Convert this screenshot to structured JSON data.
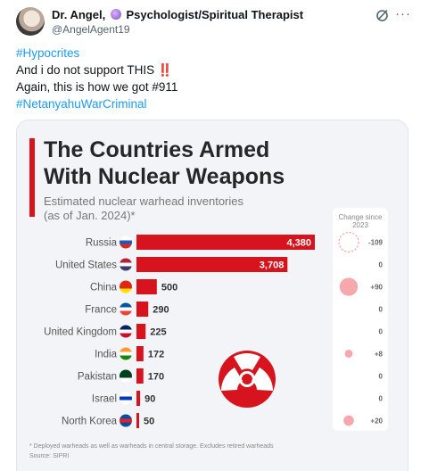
{
  "author": {
    "name": "Dr. Angel,",
    "title": "Psychologist/Spiritual Therapist",
    "handle": "@AngelAgent19"
  },
  "tweet": {
    "hashtag1": "#Hypocrites",
    "line2": "And i do not support THIS",
    "line2_emoji": "‼️",
    "line3": "Again, this is how we got #911",
    "hashtag2": "#NetanyahuWarCriminal"
  },
  "icons": {
    "grok": "grok-icon",
    "more": "more-icon",
    "title_bar_color": "#d7141e"
  },
  "chart_data": {
    "type": "bar",
    "title_line1": "The Countries Armed",
    "title_line2": "With Nuclear Weapons",
    "subtitle_line1": "Estimated nuclear warhead inventories",
    "subtitle_line2": "(as of Jan. 2024)*",
    "change_header_line1": "Change since",
    "change_header_line2": "2023",
    "categories": [
      "Russia",
      "United States",
      "China",
      "France",
      "United Kingdom",
      "India",
      "Pakistan",
      "Israel",
      "North Korea"
    ],
    "values": [
      4380,
      3708,
      500,
      290,
      225,
      172,
      170,
      90,
      50
    ],
    "value_labels": [
      "4,380",
      "3,708",
      "500",
      "290",
      "225",
      "172",
      "170",
      "90",
      "50"
    ],
    "changes": [
      "-109",
      "0",
      "+90",
      "0",
      "0",
      "+8",
      "0",
      "0",
      "+20"
    ],
    "change_values": [
      -109,
      0,
      90,
      0,
      0,
      8,
      0,
      0,
      20
    ],
    "bar_color": "#d7141e",
    "xlim": [
      0,
      4380
    ],
    "footnote_line1": "* Deployed warheads as well as warheads in central storage. Excludes retired warheads",
    "footnote_line2": "Source: SIPRI"
  }
}
